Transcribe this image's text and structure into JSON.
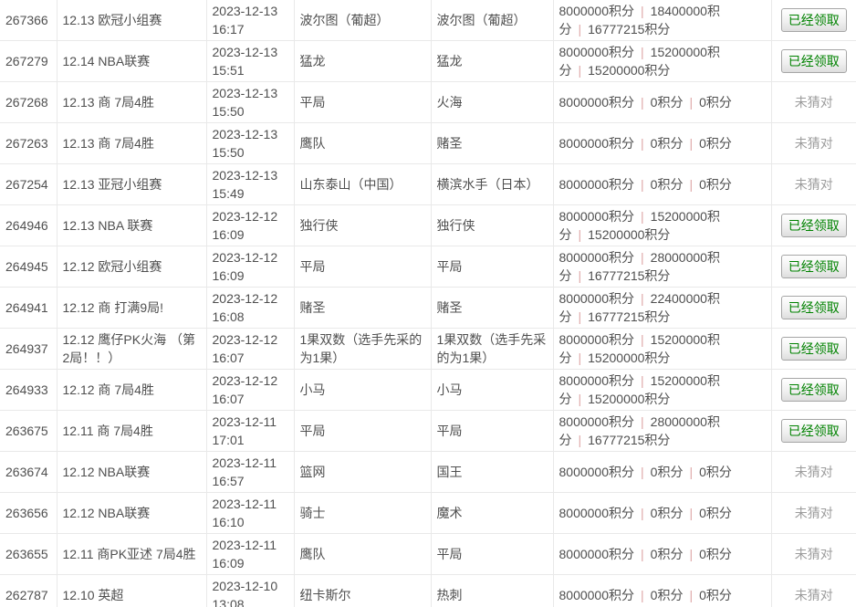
{
  "colors": {
    "row_border": "#e9e9e9",
    "body_text": "#4f4f4f",
    "missed_text": "#9c9c9c",
    "claim_button_text": "#008200",
    "claim_button_border": "#a6a6a6",
    "points_separator": "#dfa8a8",
    "background": "#ffffff"
  },
  "table": {
    "points_separator_glyph": "|",
    "status_labels": {
      "claimed": "已经领取",
      "missed": "未猜对"
    },
    "rows": [
      {
        "id": "267366",
        "event": "12.13 欧冠小组赛",
        "date": "2023-12-13",
        "time": "16:17",
        "pick": "波尔图（葡超）",
        "result": "波尔图（葡超）",
        "points": [
          "8000000积分",
          "18400000积分",
          "16777215积分"
        ],
        "status": "claimed"
      },
      {
        "id": "267279",
        "event": "12.14 NBA联赛",
        "date": "2023-12-13",
        "time": "15:51",
        "pick": "猛龙",
        "result": "猛龙",
        "points": [
          "8000000积分",
          "15200000积分",
          "15200000积分"
        ],
        "status": "claimed"
      },
      {
        "id": "267268",
        "event": "12.13 商 7局4胜",
        "date": "2023-12-13",
        "time": "15:50",
        "pick": "平局",
        "result": "火海",
        "points": [
          "8000000积分",
          "0积分",
          "0积分"
        ],
        "status": "missed"
      },
      {
        "id": "267263",
        "event": "12.13 商 7局4胜",
        "date": "2023-12-13",
        "time": "15:50",
        "pick": "鹰队",
        "result": "赌圣",
        "points": [
          "8000000积分",
          "0积分",
          "0积分"
        ],
        "status": "missed"
      },
      {
        "id": "267254",
        "event": "12.13 亚冠小组赛",
        "date": "2023-12-13",
        "time": "15:49",
        "pick": "山东泰山（中国）",
        "result": "横滨水手（日本）",
        "points": [
          "8000000积分",
          "0积分",
          "0积分"
        ],
        "status": "missed"
      },
      {
        "id": "264946",
        "event": "12.13 NBA 联赛",
        "date": "2023-12-12",
        "time": "16:09",
        "pick": "独行侠",
        "result": "独行侠",
        "points": [
          "8000000积分",
          "15200000积分",
          "15200000积分"
        ],
        "status": "claimed"
      },
      {
        "id": "264945",
        "event": "12.12 欧冠小组赛",
        "date": "2023-12-12",
        "time": "16:09",
        "pick": "平局",
        "result": "平局",
        "points": [
          "8000000积分",
          "28000000积分",
          "16777215积分"
        ],
        "status": "claimed"
      },
      {
        "id": "264941",
        "event": "12.12 商 打满9局!",
        "date": "2023-12-12",
        "time": "16:08",
        "pick": "赌圣",
        "result": "赌圣",
        "points": [
          "8000000积分",
          "22400000积分",
          "16777215积分"
        ],
        "status": "claimed"
      },
      {
        "id": "264937",
        "event": "12.12 鹰仔PK火海 （第2局！！）",
        "date": "2023-12-12",
        "time": "16:07",
        "pick": "1果双数（选手先采的为1果）",
        "result": "1果双数（选手先采的为1果）",
        "points": [
          "8000000积分",
          "15200000积分",
          "15200000积分"
        ],
        "status": "claimed"
      },
      {
        "id": "264933",
        "event": "12.12 商 7局4胜",
        "date": "2023-12-12",
        "time": "16:07",
        "pick": "小马",
        "result": "小马",
        "points": [
          "8000000积分",
          "15200000积分",
          "15200000积分"
        ],
        "status": "claimed"
      },
      {
        "id": "263675",
        "event": "12.11 商 7局4胜",
        "date": "2023-12-11",
        "time": "17:01",
        "pick": "平局",
        "result": "平局",
        "points": [
          "8000000积分",
          "28000000积分",
          "16777215积分"
        ],
        "status": "claimed"
      },
      {
        "id": "263674",
        "event": "12.12 NBA联赛",
        "date": "2023-12-11",
        "time": "16:57",
        "pick": "篮网",
        "result": "国王",
        "points": [
          "8000000积分",
          "0积分",
          "0积分"
        ],
        "status": "missed"
      },
      {
        "id": "263656",
        "event": "12.12 NBA联赛",
        "date": "2023-12-11",
        "time": "16:10",
        "pick": "骑士",
        "result": "魔术",
        "points": [
          "8000000积分",
          "0积分",
          "0积分"
        ],
        "status": "missed"
      },
      {
        "id": "263655",
        "event": "12.11 商PK亚述 7局4胜",
        "date": "2023-12-11",
        "time": "16:09",
        "pick": "鹰队",
        "result": "平局",
        "points": [
          "8000000积分",
          "0积分",
          "0积分"
        ],
        "status": "missed"
      },
      {
        "id": "262787",
        "event": "12.10 英超",
        "date": "2023-12-10",
        "time": "13:08",
        "pick": "纽卡斯尔",
        "result": "热刺",
        "points": [
          "8000000积分",
          "0积分",
          "0积分"
        ],
        "status": "missed"
      }
    ]
  }
}
